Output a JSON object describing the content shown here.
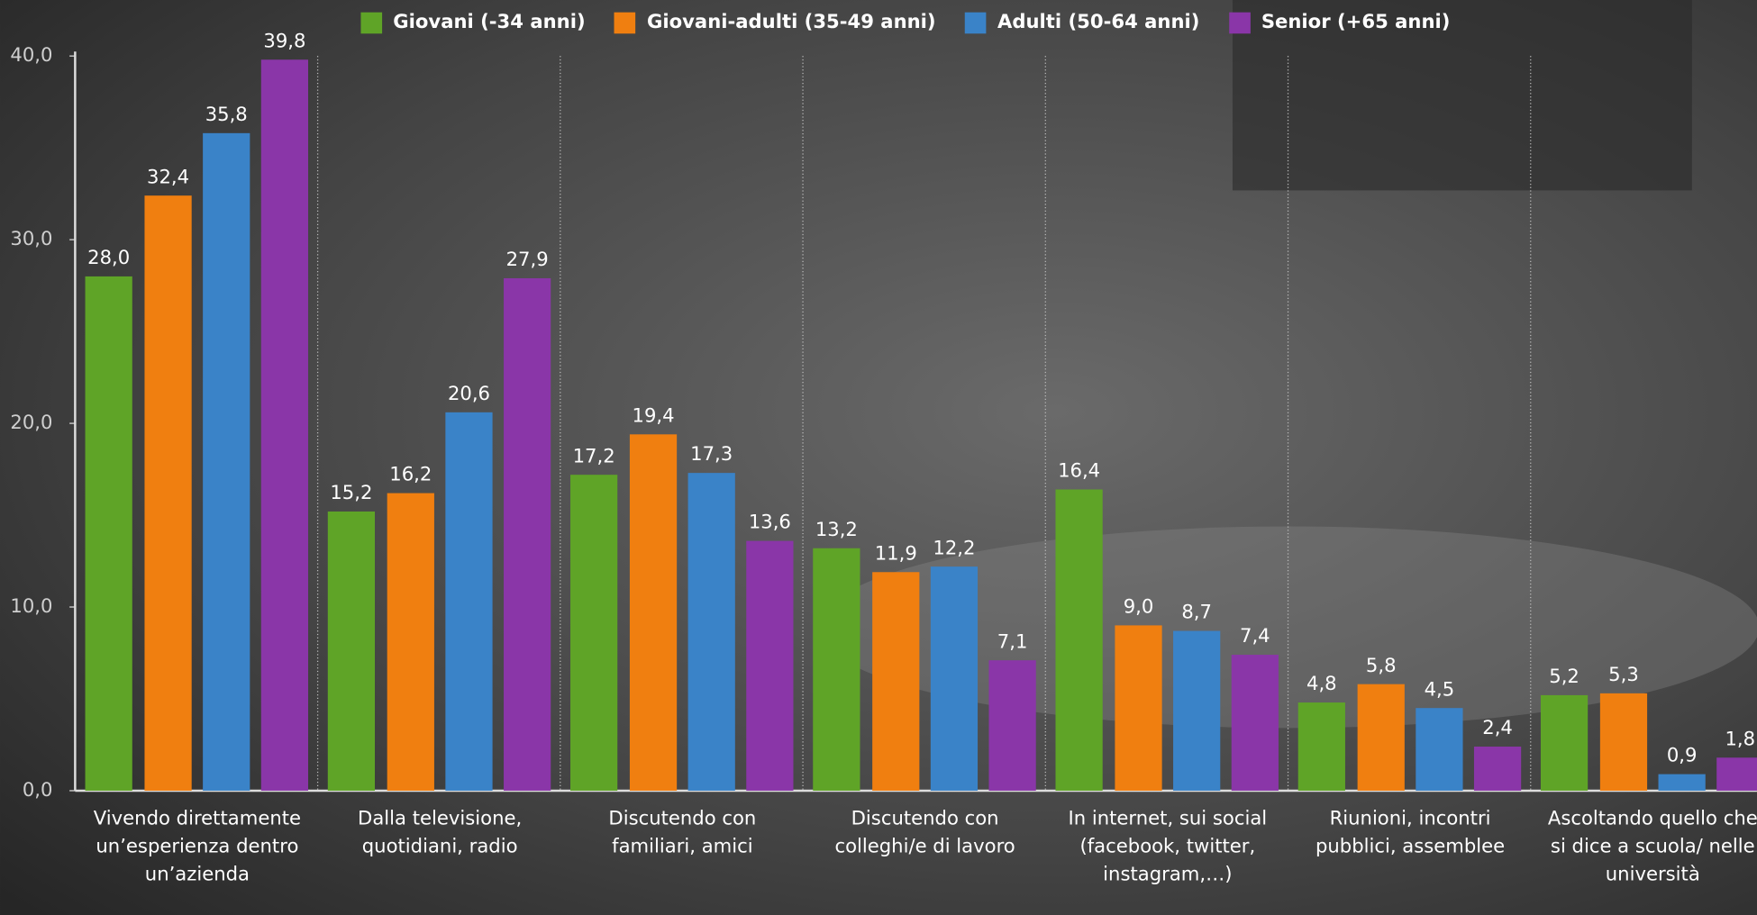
{
  "chart_data": {
    "type": "bar",
    "categories": [
      "Vivendo direttamente un’esperienza dentro un’azienda",
      "Dalla televisione, quotidiani, radio",
      "Discutendo con familiari, amici",
      "Discutendo con colleghi/e di lavoro",
      "In internet, sui social (facebook, twitter, instagram,…)",
      "Riunioni, incontri pubblici, assemblee",
      "Ascoltando quello che si dice a scuola/ nelle università"
    ],
    "series": [
      {
        "name": "Giovani (-34 anni)",
        "color": "#5fa427",
        "values": [
          28.0,
          15.2,
          17.2,
          13.2,
          16.4,
          4.8,
          5.2
        ],
        "value_labels": [
          "28,0",
          "15,2",
          "17,2",
          "13,2",
          "16,4",
          "4,8",
          "5,2"
        ]
      },
      {
        "name": "Giovani-adulti (35-49 anni)",
        "color": "#f07f10",
        "values": [
          32.4,
          16.2,
          19.4,
          11.9,
          9.0,
          5.8,
          5.3
        ],
        "value_labels": [
          "32,4",
          "16,2",
          "19,4",
          "11,9",
          "9,0",
          "5,8",
          "5,3"
        ]
      },
      {
        "name": "Adulti (50-64 anni)",
        "color": "#3a83c8",
        "values": [
          35.8,
          20.6,
          17.3,
          12.2,
          8.7,
          4.5,
          0.9
        ],
        "value_labels": [
          "35,8",
          "20,6",
          "17,3",
          "12,2",
          "8,7",
          "4,5",
          "0,9"
        ]
      },
      {
        "name": "Senior (+65 anni)",
        "color": "#8a36a8",
        "values": [
          39.8,
          27.9,
          13.6,
          7.1,
          7.4,
          2.4,
          1.8
        ],
        "value_labels": [
          "39,8",
          "27,9",
          "13,6",
          "7,1",
          "7,4",
          "2,4",
          "1,8"
        ]
      }
    ],
    "ylim": [
      0,
      40
    ],
    "yticks": [
      {
        "value": 0,
        "label": "0,0"
      },
      {
        "value": 10,
        "label": "10,0"
      },
      {
        "value": 20,
        "label": "20,0"
      },
      {
        "value": 30,
        "label": "30,0"
      },
      {
        "value": 40,
        "label": "40,0"
      }
    ],
    "grid": false,
    "legend": "top"
  }
}
